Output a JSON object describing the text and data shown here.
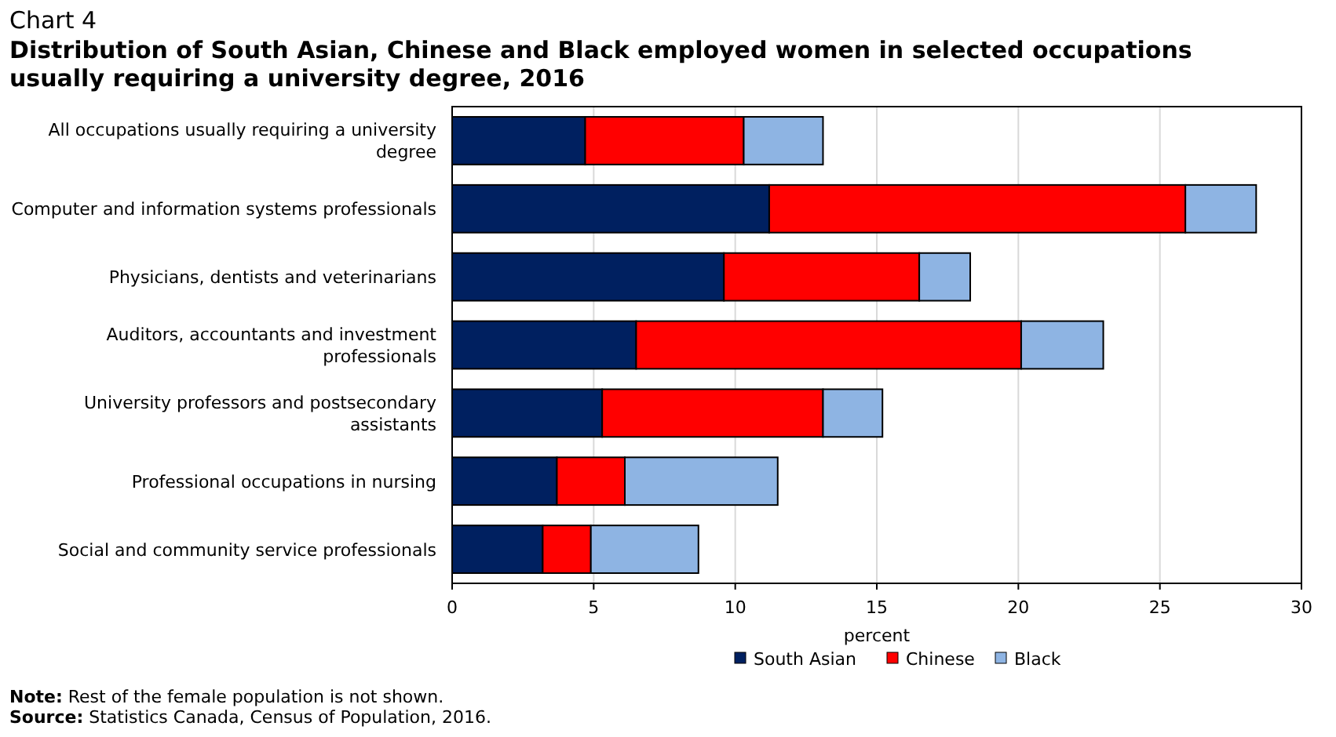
{
  "chart_data": {
    "type": "bar",
    "orientation": "horizontal",
    "stacked": true,
    "title": "Chart 4",
    "subtitle": "Distribution of South Asian, Chinese and Black employed women in selected occupations usually requiring a university degree, 2016",
    "xlabel": "percent",
    "categories": [
      "All occupations usually requiring a university degree",
      "Computer and information systems professionals",
      "Physicians, dentists and veterinarians",
      "Auditors, accountants and investment professionals",
      "University professors and postsecondary assistants",
      "Professional occupations in nursing",
      "Social and community service professionals"
    ],
    "series": [
      {
        "name": "South Asian",
        "color": "#002060",
        "values": [
          4.7,
          11.2,
          9.6,
          6.5,
          5.3,
          3.7,
          3.2
        ]
      },
      {
        "name": "Chinese",
        "color": "#ff0000",
        "values": [
          5.6,
          14.7,
          6.9,
          13.6,
          7.8,
          2.4,
          1.7
        ]
      },
      {
        "name": "Black",
        "color": "#8eb4e3",
        "values": [
          2.8,
          2.5,
          1.8,
          2.9,
          2.1,
          5.4,
          3.8
        ]
      }
    ],
    "xlim": [
      0,
      30
    ],
    "xticks": [
      0,
      5,
      10,
      15,
      20,
      25,
      30
    ],
    "grid": "x",
    "legend": "bottom",
    "annotations": [
      "Note: Rest of the female population is not shown.",
      "Source: Statistics Canada, Census of Population, 2016."
    ]
  }
}
